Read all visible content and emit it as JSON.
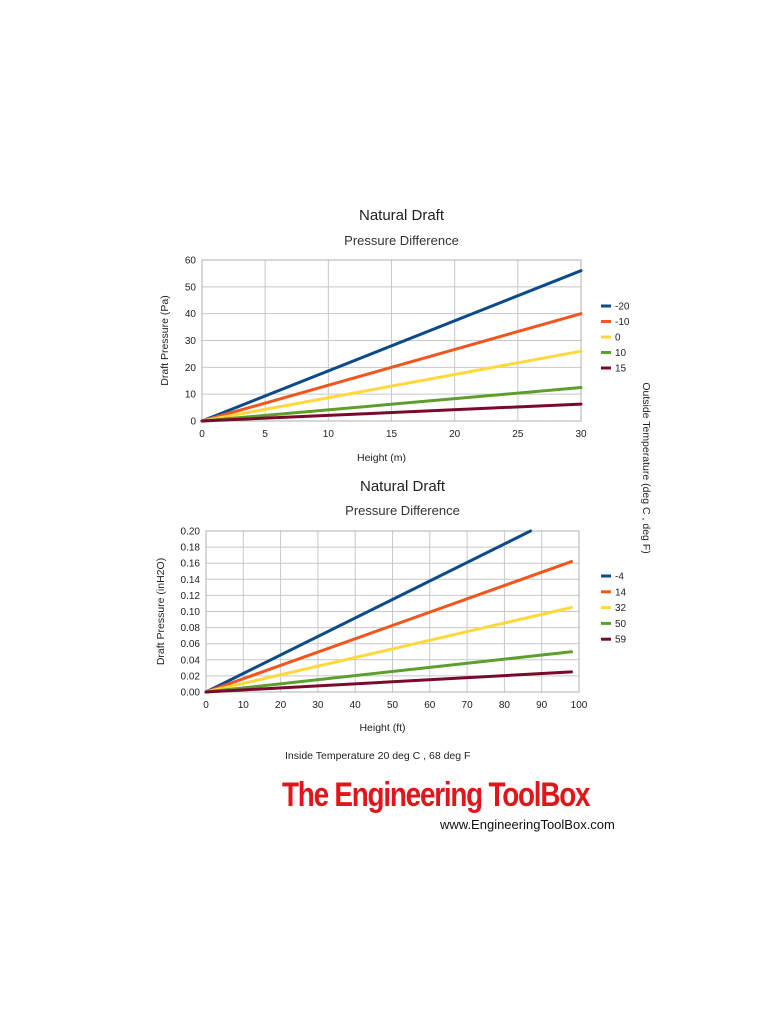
{
  "chart_data": [
    {
      "type": "line",
      "title": "Natural Draft",
      "subtitle": "Pressure Difference",
      "xlabel": "Height (m)",
      "ylabel": "Draft Pressure (Pa)",
      "xlim": [
        0,
        30
      ],
      "ylim": [
        0,
        60
      ],
      "x_ticks": [
        "0",
        "5",
        "10",
        "15",
        "20",
        "25",
        "30"
      ],
      "y_ticks": [
        "0",
        "10",
        "20",
        "30",
        "40",
        "50",
        "60"
      ],
      "grid": true,
      "legend_position": "right",
      "series": [
        {
          "name": "-20",
          "color": "#0d4a8a",
          "x": [
            0,
            30
          ],
          "y": [
            0,
            56
          ]
        },
        {
          "name": "-10",
          "color": "#f0561e",
          "x": [
            0,
            30
          ],
          "y": [
            0,
            40
          ]
        },
        {
          "name": "0",
          "color": "#ffd83c",
          "x": [
            0,
            30
          ],
          "y": [
            0,
            26
          ]
        },
        {
          "name": "10",
          "color": "#5e9e2c",
          "x": [
            0,
            30
          ],
          "y": [
            0,
            12.5
          ]
        },
        {
          "name": "15",
          "color": "#7a0a2c",
          "x": [
            0,
            30
          ],
          "y": [
            0,
            6.3
          ]
        }
      ]
    },
    {
      "type": "line",
      "title": "Natural Draft",
      "subtitle": "Pressure Difference",
      "xlabel": "Height (ft)",
      "ylabel": "Draft Pressure (inH2O)",
      "xlim": [
        0,
        100
      ],
      "ylim": [
        0,
        0.2
      ],
      "x_ticks": [
        "0",
        "10",
        "20",
        "30",
        "40",
        "50",
        "60",
        "70",
        "80",
        "90",
        "100"
      ],
      "y_ticks": [
        "0.00",
        "0.02",
        "0.04",
        "0.06",
        "0.08",
        "0.10",
        "0.12",
        "0.14",
        "0.16",
        "0.18",
        "0.20"
      ],
      "grid": true,
      "legend_position": "right",
      "series": [
        {
          "name": "-4",
          "color": "#0d4a8a",
          "x": [
            0,
            87
          ],
          "y": [
            0,
            0.2
          ]
        },
        {
          "name": "14",
          "color": "#f0561e",
          "x": [
            0,
            98
          ],
          "y": [
            0,
            0.162
          ]
        },
        {
          "name": "32",
          "color": "#ffd83c",
          "x": [
            0,
            98
          ],
          "y": [
            0,
            0.105
          ]
        },
        {
          "name": "50",
          "color": "#5e9e2c",
          "x": [
            0,
            98
          ],
          "y": [
            0,
            0.05
          ]
        },
        {
          "name": "59",
          "color": "#7a0a2c",
          "x": [
            0,
            98
          ],
          "y": [
            0,
            0.025
          ]
        }
      ]
    }
  ],
  "legend_axis_title": "Outside Temperature (deg C , deg F)",
  "footnote": "Inside Temperature 20 deg C , 68 deg F",
  "brand": {
    "name": "The Engineering ToolBox",
    "url": "www.EngineeringToolBox.com",
    "color": "#e0161b"
  }
}
